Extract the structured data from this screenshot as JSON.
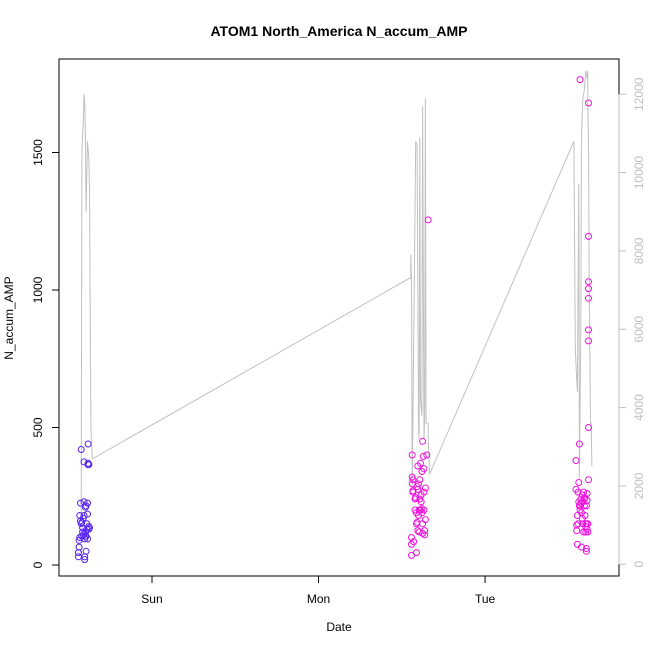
{
  "chart_data": {
    "type": "scatter",
    "title": "ATOM1 North_America N_accum_AMP",
    "xlabel": "Date",
    "ylabel": "N_accum_AMP",
    "xlim_hours": [
      -13.4,
      67.3
    ],
    "x_units_note": "hours relative to Sun 00:00",
    "x_ticks": [
      {
        "pos": 0,
        "label": "Sun"
      },
      {
        "pos": 24,
        "label": "Mon"
      },
      {
        "pos": 48,
        "label": "Tue"
      }
    ],
    "ylim": [
      -40,
      1840
    ],
    "y_ticks": [
      0,
      500,
      1000,
      1500
    ],
    "y2lim": [
      -300,
      12900
    ],
    "y2_ticks": [
      0,
      2000,
      4000,
      6000,
      8000,
      10000,
      12000
    ],
    "colors": {
      "early": "#5522ee",
      "late": "#ee11dd",
      "line": "#c0c0c0",
      "right_axis": "#bebebe"
    },
    "points": [
      [
        -10.6,
        45
      ],
      [
        -10.6,
        30
      ],
      [
        -10.5,
        65
      ],
      [
        -10.5,
        90
      ],
      [
        -10.4,
        100
      ],
      [
        -10.4,
        180
      ],
      [
        -10.3,
        160
      ],
      [
        -10.3,
        225
      ],
      [
        -10.2,
        420
      ],
      [
        -10.2,
        150
      ],
      [
        -10.1,
        155
      ],
      [
        -10.1,
        105
      ],
      [
        -10.0,
        135
      ],
      [
        -10.0,
        120
      ],
      [
        -9.9,
        170
      ],
      [
        -9.9,
        110
      ],
      [
        -9.8,
        180
      ],
      [
        -9.8,
        375
      ],
      [
        -9.8,
        230
      ],
      [
        -9.7,
        30
      ],
      [
        -9.7,
        20
      ],
      [
        -9.7,
        95
      ],
      [
        -9.6,
        105
      ],
      [
        -9.6,
        120
      ],
      [
        -9.6,
        210
      ],
      [
        -9.5,
        215
      ],
      [
        -9.5,
        50
      ],
      [
        -9.5,
        105
      ],
      [
        -9.4,
        150
      ],
      [
        -9.4,
        130
      ],
      [
        -9.3,
        225
      ],
      [
        -9.3,
        95
      ],
      [
        -9.3,
        185
      ],
      [
        -9.2,
        370
      ],
      [
        -9.2,
        365
      ],
      [
        -9.2,
        440
      ],
      [
        -9.1,
        365
      ],
      [
        -9.1,
        130
      ],
      [
        -9.1,
        140
      ],
      [
        -9.0,
        135
      ],
      [
        37.4,
        100
      ],
      [
        37.4,
        75
      ],
      [
        37.4,
        35
      ],
      [
        37.5,
        400
      ],
      [
        37.5,
        320
      ],
      [
        37.5,
        295
      ],
      [
        37.6,
        265
      ],
      [
        37.6,
        270
      ],
      [
        37.6,
        310
      ],
      [
        37.7,
        85
      ],
      [
        37.9,
        200
      ],
      [
        37.9,
        240
      ],
      [
        38.0,
        245
      ],
      [
        38.1,
        190
      ],
      [
        38.1,
        150
      ],
      [
        38.1,
        45
      ],
      [
        38.2,
        285
      ],
      [
        38.2,
        155
      ],
      [
        38.3,
        275
      ],
      [
        38.3,
        360
      ],
      [
        38.3,
        125
      ],
      [
        38.4,
        295
      ],
      [
        38.4,
        180
      ],
      [
        38.5,
        200
      ],
      [
        38.5,
        120
      ],
      [
        38.6,
        310
      ],
      [
        38.6,
        240
      ],
      [
        38.7,
        200
      ],
      [
        38.7,
        370
      ],
      [
        38.8,
        255
      ],
      [
        38.8,
        230
      ],
      [
        38.9,
        205
      ],
      [
        38.9,
        340
      ],
      [
        38.9,
        190
      ],
      [
        39.0,
        450
      ],
      [
        39.0,
        150
      ],
      [
        39.0,
        115
      ],
      [
        39.1,
        395
      ],
      [
        39.2,
        350
      ],
      [
        39.2,
        265
      ],
      [
        39.2,
        200
      ],
      [
        39.3,
        125
      ],
      [
        39.3,
        110
      ],
      [
        39.4,
        280
      ],
      [
        39.4,
        165
      ],
      [
        39.6,
        400
      ],
      [
        39.8,
        1255
      ],
      [
        61.1,
        380
      ],
      [
        61.1,
        275
      ],
      [
        61.2,
        145
      ],
      [
        61.2,
        125
      ],
      [
        61.3,
        75
      ],
      [
        61.3,
        180
      ],
      [
        61.4,
        265
      ],
      [
        61.4,
        150
      ],
      [
        61.5,
        230
      ],
      [
        61.5,
        300
      ],
      [
        61.6,
        215
      ],
      [
        61.6,
        440
      ],
      [
        61.7,
        215
      ],
      [
        61.7,
        200
      ],
      [
        61.8,
        240
      ],
      [
        61.8,
        225
      ],
      [
        61.9,
        65
      ],
      [
        61.9,
        190
      ],
      [
        62.0,
        170
      ],
      [
        62.0,
        255
      ],
      [
        62.1,
        230
      ],
      [
        62.1,
        150
      ],
      [
        62.2,
        120
      ],
      [
        62.2,
        265
      ],
      [
        62.3,
        215
      ],
      [
        62.3,
        240
      ],
      [
        62.4,
        180
      ],
      [
        62.4,
        245
      ],
      [
        62.5,
        120
      ],
      [
        62.5,
        140
      ],
      [
        62.5,
        150
      ],
      [
        62.6,
        215
      ],
      [
        62.6,
        50
      ],
      [
        62.6,
        60
      ],
      [
        62.7,
        130
      ],
      [
        62.7,
        150
      ],
      [
        62.7,
        235
      ],
      [
        62.7,
        260
      ],
      [
        62.8,
        120
      ],
      [
        62.8,
        150
      ],
      [
        61.7,
        1765
      ],
      [
        62.9,
        1680
      ],
      [
        62.9,
        1195
      ],
      [
        62.9,
        1030
      ],
      [
        62.9,
        1005
      ],
      [
        62.9,
        970
      ],
      [
        62.9,
        855
      ],
      [
        62.9,
        815
      ],
      [
        62.9,
        500
      ],
      [
        62.9,
        310
      ]
    ],
    "cumulative_line": [
      [
        -10.5,
        1300
      ],
      [
        -10.2,
        1300
      ],
      [
        -10.1,
        10500
      ],
      [
        -9.9,
        11300
      ],
      [
        -9.8,
        12000
      ],
      [
        -9.7,
        11800
      ],
      [
        -9.6,
        11000
      ],
      [
        -9.5,
        9000
      ],
      [
        -9.4,
        10000
      ],
      [
        -9.3,
        10800
      ],
      [
        -9.2,
        10600
      ],
      [
        -9.1,
        10400
      ],
      [
        -9.0,
        9600
      ],
      [
        -8.8,
        3500
      ],
      [
        -8.6,
        2700
      ],
      [
        -8.5,
        2700
      ],
      [
        37.1,
        7300
      ],
      [
        37.3,
        7300
      ],
      [
        37.3,
        7900
      ],
      [
        37.4,
        7300
      ],
      [
        37.5,
        1900
      ],
      [
        37.8,
        7200
      ],
      [
        38.0,
        10800
      ],
      [
        38.2,
        10700
      ],
      [
        38.4,
        3500
      ],
      [
        38.5,
        3200
      ],
      [
        38.6,
        10900
      ],
      [
        38.7,
        4200
      ],
      [
        38.9,
        3800
      ],
      [
        39.0,
        11700
      ],
      [
        39.2,
        3200
      ],
      [
        39.3,
        3800
      ],
      [
        39.4,
        11900
      ],
      [
        39.5,
        3600
      ],
      [
        39.8,
        3600
      ],
      [
        39.8,
        3200
      ],
      [
        40.0,
        2300
      ],
      [
        60.8,
        10800
      ],
      [
        61.0,
        5500
      ],
      [
        61.2,
        4700
      ],
      [
        61.3,
        4400
      ],
      [
        61.5,
        9700
      ],
      [
        61.6,
        2200
      ],
      [
        61.8,
        6000
      ],
      [
        61.9,
        11000
      ],
      [
        62.1,
        11900
      ],
      [
        62.3,
        12100
      ],
      [
        62.5,
        12600
      ],
      [
        62.7,
        12400
      ],
      [
        62.8,
        12600
      ],
      [
        62.8,
        11800
      ],
      [
        62.9,
        10800
      ],
      [
        63.0,
        7200
      ],
      [
        63.2,
        3600
      ],
      [
        63.3,
        3600
      ],
      [
        63.4,
        2500
      ]
    ]
  }
}
